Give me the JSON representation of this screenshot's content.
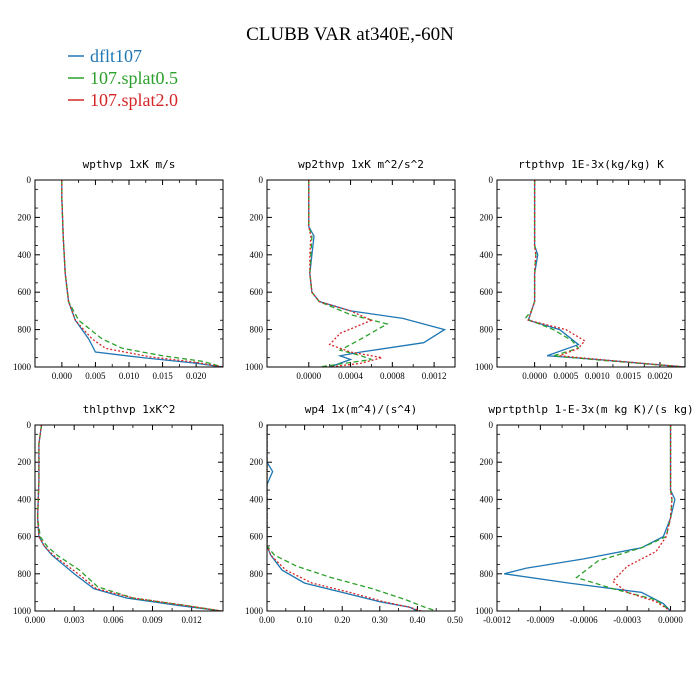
{
  "title": "CLUBB VAR at340E,-60N",
  "legend": [
    {
      "label": "dflt107",
      "color": "#1f77b4",
      "dash": "solid"
    },
    {
      "label": "107.splat0.5",
      "color": "#2ca02c",
      "dash": "dash"
    },
    {
      "label": "107.splat2.0",
      "color": "#d62728",
      "dash": "dot"
    }
  ],
  "chart_data": [
    {
      "type": "line",
      "title": "wpthvp   1xK m/s",
      "ylim": [
        1000,
        0
      ],
      "yticks": [
        "0",
        "200",
        "400",
        "600",
        "800",
        "1000"
      ],
      "xlim": [
        -0.004,
        0.024
      ],
      "xticks": [
        0.0,
        0.005,
        0.01,
        0.015,
        0.02
      ],
      "xticklabels": [
        "0.000",
        "0.005",
        "0.010",
        "0.015",
        "0.020"
      ],
      "series": [
        {
          "name": "dflt107",
          "points": [
            [
              0,
              0
            ],
            [
              0,
              100
            ],
            [
              0.0002,
              300
            ],
            [
              0.0005,
              500
            ],
            [
              0.001,
              650
            ],
            [
              0.002,
              750
            ],
            [
              0.004,
              850
            ],
            [
              0.005,
              920
            ],
            [
              0.012,
              950
            ],
            [
              0.02,
              980
            ],
            [
              0.024,
              1000
            ]
          ]
        },
        {
          "name": "107.splat0.5",
          "points": [
            [
              0,
              0
            ],
            [
              0,
              100
            ],
            [
              0.0002,
              300
            ],
            [
              0.0005,
              500
            ],
            [
              0.001,
              650
            ],
            [
              0.0025,
              750
            ],
            [
              0.006,
              850
            ],
            [
              0.009,
              900
            ],
            [
              0.015,
              940
            ],
            [
              0.021,
              970
            ],
            [
              0.024,
              1000
            ]
          ]
        },
        {
          "name": "107.splat2.0",
          "points": [
            [
              0,
              0
            ],
            [
              0,
              100
            ],
            [
              0.0002,
              300
            ],
            [
              0.0005,
              500
            ],
            [
              0.001,
              650
            ],
            [
              0.002,
              750
            ],
            [
              0.0045,
              850
            ],
            [
              0.0065,
              900
            ],
            [
              0.013,
              945
            ],
            [
              0.02,
              975
            ],
            [
              0.024,
              1000
            ]
          ]
        }
      ]
    },
    {
      "type": "line",
      "title": "wp2thvp   1xK m^2/s^2",
      "ylim": [
        1000,
        0
      ],
      "yticks": [
        "0",
        "200",
        "400",
        "600",
        "800",
        "1000"
      ],
      "xlim": [
        -0.0004,
        0.0014
      ],
      "xticks": [
        0.0,
        0.0004,
        0.0008,
        0.0012
      ],
      "xticklabels": [
        "0.0000",
        "0.0004",
        "0.0008",
        "0.0012"
      ],
      "series": [
        {
          "name": "dflt107",
          "points": [
            [
              0,
              0
            ],
            [
              0,
              250
            ],
            [
              5e-05,
              300
            ],
            [
              3e-05,
              400
            ],
            [
              1e-05,
              500
            ],
            [
              3e-05,
              600
            ],
            [
              0.0001,
              650
            ],
            [
              0.0004,
              700
            ],
            [
              0.0009,
              740
            ],
            [
              0.0013,
              800
            ],
            [
              0.0011,
              870
            ],
            [
              0.0005,
              920
            ],
            [
              0.0003,
              940
            ],
            [
              0.0004,
              960
            ],
            [
              0.0002,
              1000
            ]
          ]
        },
        {
          "name": "107.splat0.5",
          "points": [
            [
              0,
              0
            ],
            [
              0,
              250
            ],
            [
              3e-05,
              300
            ],
            [
              2e-05,
              400
            ],
            [
              1e-05,
              500
            ],
            [
              3e-05,
              600
            ],
            [
              0.0001,
              650
            ],
            [
              0.0004,
              720
            ],
            [
              0.00075,
              770
            ],
            [
              0.0005,
              850
            ],
            [
              0.0003,
              910
            ],
            [
              0.0005,
              940
            ],
            [
              0.0006,
              960
            ],
            [
              0.0001,
              1000
            ]
          ]
        },
        {
          "name": "107.splat2.0",
          "points": [
            [
              0,
              0
            ],
            [
              0,
              250
            ],
            [
              2e-05,
              300
            ],
            [
              1e-05,
              400
            ],
            [
              1e-05,
              500
            ],
            [
              3e-05,
              600
            ],
            [
              0.0001,
              650
            ],
            [
              0.0004,
              700
            ],
            [
              0.0006,
              750
            ],
            [
              0.0003,
              820
            ],
            [
              0.0002,
              880
            ],
            [
              0.0004,
              920
            ],
            [
              0.0007,
              950
            ],
            [
              0.0005,
              980
            ],
            [
              0.0002,
              1000
            ]
          ]
        }
      ]
    },
    {
      "type": "line",
      "title": "rtpthvp   1E-3x(kg/kg) K",
      "ylim": [
        1000,
        0
      ],
      "yticks": [
        "0",
        "200",
        "400",
        "600",
        "800",
        "1000"
      ],
      "xlim": [
        -0.0006,
        0.0024
      ],
      "xticks": [
        0.0,
        0.0005,
        0.001,
        0.0015,
        0.002
      ],
      "xticklabels": [
        "0.0000",
        "0.0005",
        "0.0010",
        "0.0015",
        "0.0020"
      ],
      "series": [
        {
          "name": "dflt107",
          "points": [
            [
              0,
              0
            ],
            [
              0,
              350
            ],
            [
              5e-05,
              400
            ],
            [
              0,
              500
            ],
            [
              0,
              650
            ],
            [
              -5e-05,
              700
            ],
            [
              -0.0001,
              750
            ],
            [
              0.0004,
              800
            ],
            [
              0.0007,
              880
            ],
            [
              0.0002,
              940
            ],
            [
              0.001,
              960
            ],
            [
              0.0024,
              1000
            ]
          ]
        },
        {
          "name": "107.splat0.5",
          "points": [
            [
              0,
              0
            ],
            [
              0,
              350
            ],
            [
              2e-05,
              400
            ],
            [
              0,
              500
            ],
            [
              0,
              650
            ],
            [
              -5e-05,
              700
            ],
            [
              -0.00015,
              740
            ],
            [
              0.0003,
              800
            ],
            [
              0.0006,
              860
            ],
            [
              0.0007,
              900
            ],
            [
              0.0003,
              940
            ],
            [
              0.0011,
              965
            ],
            [
              0.0024,
              1000
            ]
          ]
        },
        {
          "name": "107.splat2.0",
          "points": [
            [
              0,
              0
            ],
            [
              0,
              350
            ],
            [
              2e-05,
              400
            ],
            [
              0,
              500
            ],
            [
              0,
              650
            ],
            [
              -5e-05,
              700
            ],
            [
              -0.0001,
              750
            ],
            [
              0.0005,
              800
            ],
            [
              0.0008,
              860
            ],
            [
              0.0007,
              900
            ],
            [
              0.0004,
              940
            ],
            [
              0.0012,
              965
            ],
            [
              0.0024,
              1000
            ]
          ]
        }
      ]
    },
    {
      "type": "line",
      "title": "thlpthvp   1xK^2",
      "ylim": [
        1000,
        0
      ],
      "yticks": [
        "0",
        "200",
        "400",
        "600",
        "800",
        "1000"
      ],
      "xlim": [
        0.0,
        0.0144
      ],
      "xticks": [
        0.0,
        0.003,
        0.006,
        0.009,
        0.012
      ],
      "xticklabels": [
        "0.000",
        "0.003",
        "0.006",
        "0.009",
        "0.012"
      ],
      "series": [
        {
          "name": "dflt107",
          "points": [
            [
              0.0005,
              0
            ],
            [
              0.0003,
              100
            ],
            [
              0.0003,
              300
            ],
            [
              0.0002,
              500
            ],
            [
              0.0003,
              600
            ],
            [
              0.0007,
              650
            ],
            [
              0.0013,
              700
            ],
            [
              0.003,
              800
            ],
            [
              0.0045,
              880
            ],
            [
              0.007,
              930
            ],
            [
              0.011,
              970
            ],
            [
              0.0143,
              1000
            ]
          ]
        },
        {
          "name": "107.splat0.5",
          "points": [
            [
              0.0005,
              0
            ],
            [
              0.0003,
              100
            ],
            [
              0.0003,
              300
            ],
            [
              0.0002,
              500
            ],
            [
              0.0004,
              600
            ],
            [
              0.0009,
              650
            ],
            [
              0.0017,
              700
            ],
            [
              0.0034,
              780
            ],
            [
              0.0045,
              850
            ],
            [
              0.0048,
              870
            ],
            [
              0.0075,
              930
            ],
            [
              0.0115,
              970
            ],
            [
              0.0143,
              1000
            ]
          ]
        },
        {
          "name": "107.splat2.0",
          "points": [
            [
              0.0005,
              0
            ],
            [
              0.0003,
              100
            ],
            [
              0.0003,
              300
            ],
            [
              0.0002,
              500
            ],
            [
              0.0003,
              600
            ],
            [
              0.0007,
              650
            ],
            [
              0.0014,
              700
            ],
            [
              0.0033,
              800
            ],
            [
              0.0047,
              880
            ],
            [
              0.0075,
              930
            ],
            [
              0.0115,
              970
            ],
            [
              0.0143,
              1000
            ]
          ]
        }
      ]
    },
    {
      "type": "line",
      "title": "wp4   1x(m^4)/(s^4)",
      "ylim": [
        1000,
        0
      ],
      "yticks": [
        "0",
        "200",
        "400",
        "600",
        "800",
        "1000"
      ],
      "xlim": [
        0.0,
        0.5
      ],
      "xticks": [
        0.0,
        0.1,
        0.2,
        0.3,
        0.4,
        0.5
      ],
      "xticklabels": [
        "0.00",
        "0.10",
        "0.20",
        "0.30",
        "0.40",
        "0.50"
      ],
      "series": [
        {
          "name": "dflt107",
          "points": [
            [
              0,
              0
            ],
            [
              0,
              200
            ],
            [
              0.015,
              250
            ],
            [
              0,
              320
            ],
            [
              0,
              650
            ],
            [
              0.01,
              700
            ],
            [
              0.04,
              780
            ],
            [
              0.1,
              850
            ],
            [
              0.2,
              900
            ],
            [
              0.3,
              950
            ],
            [
              0.38,
              980
            ],
            [
              0.4,
              1000
            ]
          ]
        },
        {
          "name": "107.splat0.5",
          "points": [
            [
              0,
              0
            ],
            [
              0,
              200
            ],
            [
              0,
              650
            ],
            [
              0.02,
              700
            ],
            [
              0.08,
              760
            ],
            [
              0.17,
              820
            ],
            [
              0.28,
              880
            ],
            [
              0.37,
              940
            ],
            [
              0.42,
              980
            ],
            [
              0.45,
              1000
            ]
          ]
        },
        {
          "name": "107.splat2.0",
          "points": [
            [
              0,
              0
            ],
            [
              0,
              200
            ],
            [
              0,
              650
            ],
            [
              0.01,
              700
            ],
            [
              0.05,
              780
            ],
            [
              0.12,
              850
            ],
            [
              0.22,
              900
            ],
            [
              0.31,
              950
            ],
            [
              0.38,
              980
            ],
            [
              0.41,
              1000
            ]
          ]
        }
      ]
    },
    {
      "type": "line",
      "title": "wprtpthlp   1-E-3x(m kg K)/(s kg)",
      "ylim": [
        1000,
        0
      ],
      "yticks": [
        "0",
        "200",
        "400",
        "600",
        "800",
        "1000"
      ],
      "xlim": [
        -0.0012,
        0.0001
      ],
      "xticks": [
        -0.0012,
        -0.0009,
        -0.0006,
        -0.0003,
        0.0
      ],
      "xticklabels": [
        "-0.0012",
        "-0.0009",
        "-0.0006",
        "-0.0003",
        "0.0000"
      ],
      "series": [
        {
          "name": "dflt107",
          "points": [
            [
              0,
              0
            ],
            [
              0,
              350
            ],
            [
              3e-05,
              400
            ],
            [
              0,
              500
            ],
            [
              -5e-05,
              600
            ],
            [
              -0.0002,
              660
            ],
            [
              -0.0006,
              720
            ],
            [
              -0.001,
              770
            ],
            [
              -0.00115,
              800
            ],
            [
              -0.0007,
              850
            ],
            [
              -0.0002,
              900
            ],
            [
              -5e-05,
              960
            ],
            [
              0,
              1000
            ]
          ]
        },
        {
          "name": "107.splat0.5",
          "points": [
            [
              0,
              0
            ],
            [
              0,
              350
            ],
            [
              1e-05,
              400
            ],
            [
              0,
              500
            ],
            [
              -3e-05,
              600
            ],
            [
              -0.0002,
              660
            ],
            [
              -0.0005,
              730
            ],
            [
              -0.00065,
              820
            ],
            [
              -0.0004,
              880
            ],
            [
              -0.0001,
              940
            ],
            [
              0,
              1000
            ]
          ]
        },
        {
          "name": "107.splat2.0",
          "points": [
            [
              0,
              0
            ],
            [
              0,
              350
            ],
            [
              1e-05,
              400
            ],
            [
              0,
              500
            ],
            [
              -3e-05,
              600
            ],
            [
              -0.0001,
              680
            ],
            [
              -0.0003,
              760
            ],
            [
              -0.0004,
              840
            ],
            [
              -0.0003,
              900
            ],
            [
              -0.0001,
              950
            ],
            [
              0,
              1000
            ]
          ]
        }
      ]
    }
  ]
}
